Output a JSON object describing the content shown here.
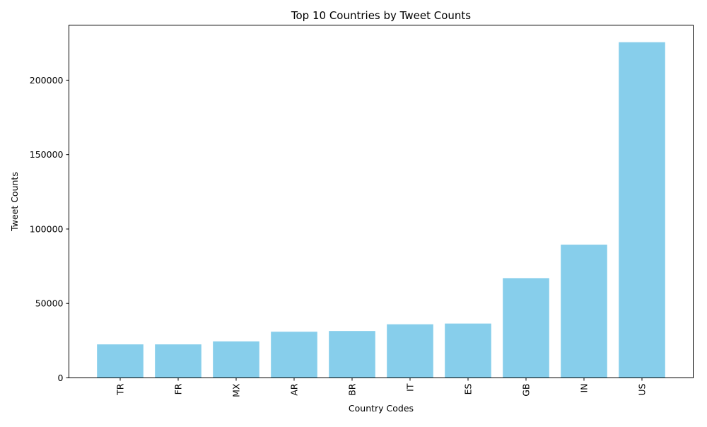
{
  "colors": {
    "bar": "#87CEEB",
    "axis": "#000000",
    "background": "#ffffff"
  },
  "chart_data": {
    "type": "bar",
    "title": "Top 10 Countries by Tweet Counts",
    "xlabel": "Country Codes",
    "ylabel": "Tweet Counts",
    "categories": [
      "TR",
      "FR",
      "MX",
      "AR",
      "BR",
      "IT",
      "ES",
      "GB",
      "IN",
      "US"
    ],
    "values": [
      22500,
      22500,
      24500,
      31000,
      31500,
      36000,
      36500,
      67000,
      89500,
      225500
    ],
    "ylim": [
      0,
      237000
    ],
    "yticks": [
      0,
      50000,
      100000,
      150000,
      200000
    ],
    "ytick_labels": [
      "0",
      "50000",
      "100000",
      "150000",
      "200000"
    ],
    "xtick_rotation": "vertical",
    "grid": false,
    "legend": "none"
  }
}
